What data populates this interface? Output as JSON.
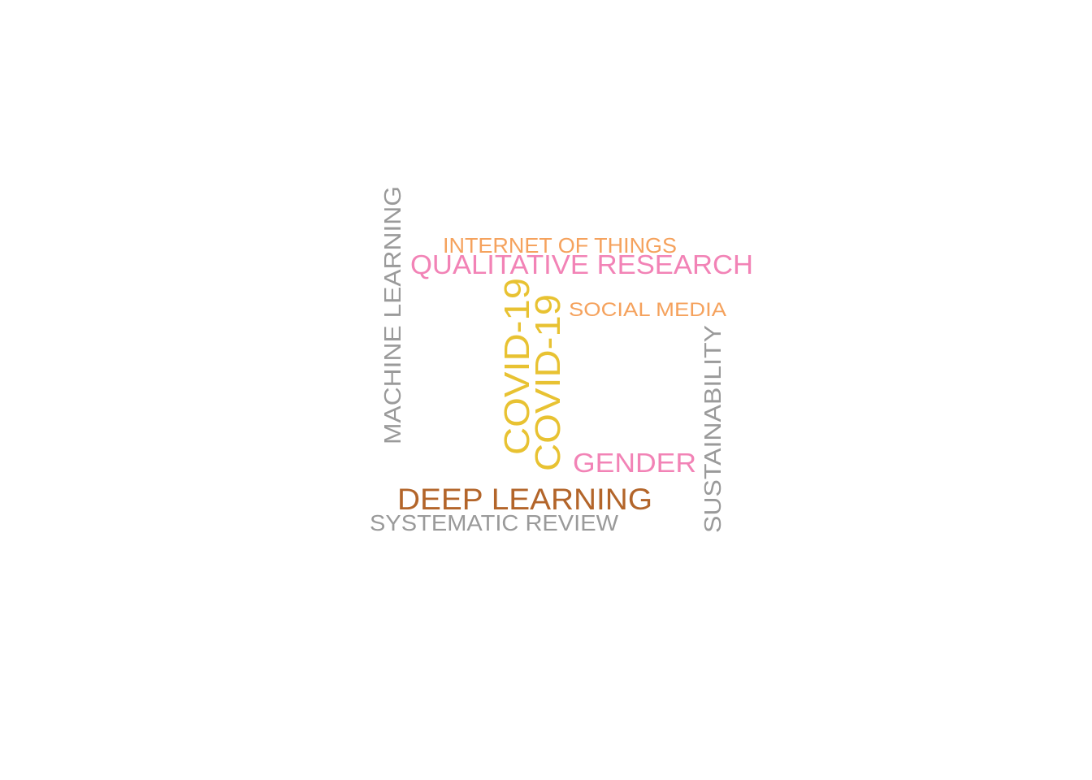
{
  "chart_data": {
    "type": "wordcloud",
    "words": [
      {
        "text": "COVID-19",
        "color": "#e8c232",
        "orientation": "vertical"
      },
      {
        "text": "COVID-19",
        "color": "#e8c232",
        "orientation": "vertical"
      },
      {
        "text": "DEEP LEARNING",
        "color": "#b3652a",
        "orientation": "horizontal"
      },
      {
        "text": "QUALITATIVE RESEARCH",
        "color": "#f283b6",
        "orientation": "horizontal"
      },
      {
        "text": "GENDER",
        "color": "#f283b6",
        "orientation": "horizontal"
      },
      {
        "text": "MACHINE LEARNING",
        "color": "#9a9a9a",
        "orientation": "vertical"
      },
      {
        "text": "SUSTAINABILITY",
        "color": "#9a9a9a",
        "orientation": "vertical"
      },
      {
        "text": "SYSTEMATIC REVIEW",
        "color": "#9a9a9a",
        "orientation": "horizontal"
      },
      {
        "text": "INTERNET OF THINGS",
        "color": "#f5a25d",
        "orientation": "horizontal"
      },
      {
        "text": "SOCIAL MEDIA",
        "color": "#f5a25d",
        "orientation": "horizontal"
      }
    ]
  }
}
